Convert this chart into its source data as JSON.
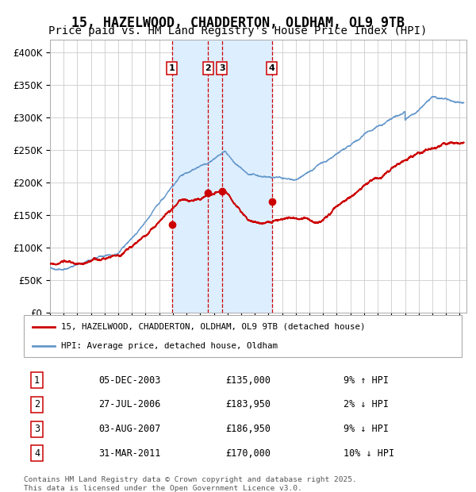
{
  "title": "15, HAZELWOOD, CHADDERTON, OLDHAM, OL9 9TB",
  "subtitle": "Price paid vs. HM Land Registry's House Price Index (HPI)",
  "title_fontsize": 12,
  "subtitle_fontsize": 10,
  "ylim": [
    0,
    420000
  ],
  "yticks": [
    0,
    50000,
    100000,
    150000,
    200000,
    250000,
    300000,
    350000,
    400000
  ],
  "ytick_labels": [
    "£0",
    "£50K",
    "£100K",
    "£150K",
    "£200K",
    "£250K",
    "£300K",
    "£350K",
    "£400K"
  ],
  "background_color": "#ffffff",
  "plot_bg_color": "#ffffff",
  "grid_color": "#cccccc",
  "hpi_line_color": "#6699cc",
  "price_line_color": "#cc0000",
  "sale_marker_color": "#cc0000",
  "vline_color": "#cc0000",
  "shade_color": "#ddeeff",
  "legend_label_price": "15, HAZELWOOD, CHADDERTON, OLDHAM, OL9 9TB (detached house)",
  "legend_label_hpi": "HPI: Average price, detached house, Oldham",
  "sales": [
    {
      "num": 1,
      "date": "2003-12-05",
      "price": 135000,
      "x_year": 2003.92
    },
    {
      "num": 2,
      "date": "2006-07-27",
      "price": 183950,
      "x_year": 2006.57
    },
    {
      "num": 3,
      "date": "2007-08-03",
      "price": 186950,
      "x_year": 2007.59
    },
    {
      "num": 4,
      "date": "2011-03-31",
      "price": 170000,
      "x_year": 2011.25
    }
  ],
  "table_rows": [
    {
      "num": 1,
      "date": "05-DEC-2003",
      "price": "£135,000",
      "hpi_diff": "9% ↑ HPI"
    },
    {
      "num": 2,
      "date": "27-JUL-2006",
      "price": "£183,950",
      "hpi_diff": "2% ↓ HPI"
    },
    {
      "num": 3,
      "date": "03-AUG-2007",
      "price": "£186,950",
      "hpi_diff": "9% ↓ HPI"
    },
    {
      "num": 4,
      "date": "31-MAR-2011",
      "price": "£170,000",
      "hpi_diff": "10% ↓ HPI"
    }
  ],
  "footer_line1": "Contains HM Land Registry data © Crown copyright and database right 2025.",
  "footer_line2": "This data is licensed under the Open Government Licence v3.0.",
  "xmin": 1995.0,
  "xmax": 2025.5
}
